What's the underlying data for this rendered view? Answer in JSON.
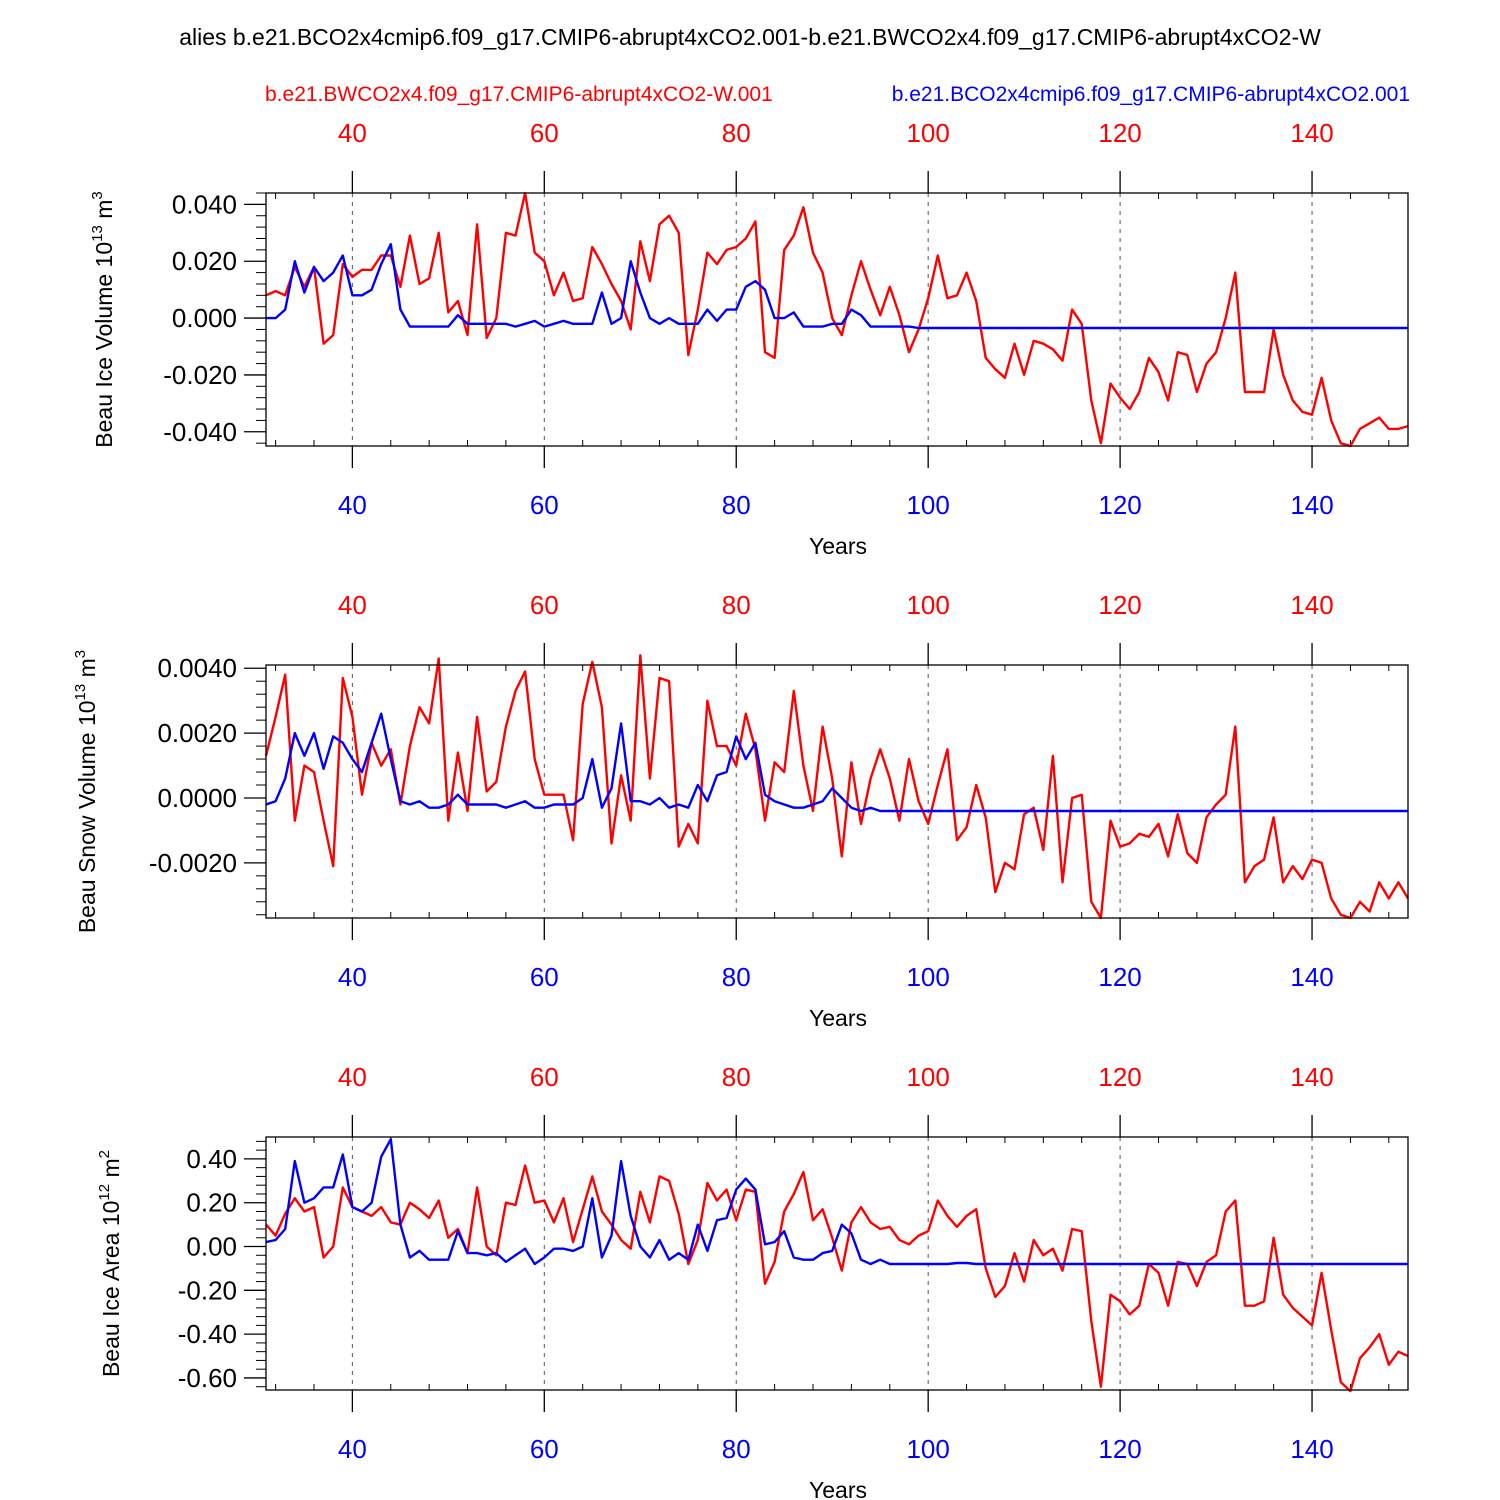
{
  "title": "alies b.e21.BCO2x4cmip6.f09_g17.CMIP6-abrupt4xCO2.001-b.e21.BWCO2x4.f09_g17.CMIP6-abrupt4xCO2-W",
  "colors": {
    "red": "#ff0000",
    "blue": "#0000ff",
    "axis": "#000000",
    "grid": "#555555"
  },
  "chart_data": [
    {
      "type": "line",
      "panel": "ice-volume",
      "ylabel_main": "Beau Ice Volume 10",
      "ylabel_exp": "13",
      "ylabel_unit": " m",
      "ylabel_unit_exp": "3",
      "xlabel": "Years",
      "xlim": [
        31,
        150
      ],
      "ylim": [
        -0.045,
        0.044
      ],
      "yticks": [
        0.04,
        0.02,
        0.0,
        -0.02,
        -0.04
      ],
      "ytick_labels": [
        "0.040",
        "0.020",
        "0.000",
        "-0.020",
        "-0.040"
      ],
      "xticks": [
        40,
        60,
        80,
        100,
        120,
        140
      ],
      "xtick_labels": [
        "40",
        "60",
        "80",
        "100",
        "120",
        "140"
      ],
      "legend_red": "b.e21.BWCO2x4.f09_g17.CMIP6-abrupt4xCO2-W.001",
      "legend_blue": "b.e21.BCO2x4cmip6.f09_g17.CMIP6-abrupt4xCO2.001",
      "series": [
        {
          "name": "b.e21.BWCO2x4.f09_g17.CMIP6-abrupt4xCO2-W.001",
          "color": "red",
          "start_year": 31,
          "values": [
            0.008,
            0.0095,
            0.008,
            0.018,
            0.011,
            0.018,
            -0.009,
            -0.006,
            0.019,
            0.0145,
            0.017,
            0.017,
            0.022,
            0.022,
            0.011,
            0.029,
            0.012,
            0.014,
            0.03,
            0.002,
            0.006,
            -0.006,
            0.033,
            -0.007,
            0.0,
            0.03,
            0.029,
            0.044,
            0.023,
            0.02,
            0.008,
            0.016,
            0.006,
            0.007,
            0.025,
            0.019,
            0.012,
            0.006,
            -0.004,
            0.027,
            0.013,
            0.033,
            0.036,
            0.03,
            -0.013,
            0.003,
            0.023,
            0.019,
            0.024,
            0.025,
            0.028,
            0.034,
            -0.012,
            -0.014,
            0.024,
            0.029,
            0.039,
            0.023,
            0.016,
            0.0,
            -0.006,
            0.008,
            0.02,
            0.01,
            0.001,
            0.011,
            0.001,
            -0.012,
            -0.004,
            0.007,
            0.022,
            0.007,
            0.008,
            0.016,
            0.006,
            -0.014,
            -0.018,
            -0.021,
            -0.009,
            -0.02,
            -0.008,
            -0.009,
            -0.011,
            -0.015,
            0.003,
            -0.002,
            -0.029,
            -0.044,
            -0.023,
            -0.028,
            -0.032,
            -0.026,
            -0.014,
            -0.019,
            -0.029,
            -0.012,
            -0.013,
            -0.026,
            -0.016,
            -0.012,
            0.0,
            0.016,
            -0.026,
            -0.026,
            -0.026,
            -0.004,
            -0.02,
            -0.029,
            -0.033,
            -0.034,
            -0.021,
            -0.036,
            -0.044,
            -0.045,
            -0.039,
            -0.037,
            -0.035,
            -0.039,
            -0.039,
            -0.038
          ]
        },
        {
          "name": "b.e21.BCO2x4cmip6.f09_g17.CMIP6-abrupt4xCO2.001",
          "color": "blue",
          "start_year": 31,
          "values": [
            0.0,
            0.0,
            0.003,
            0.02,
            0.009,
            0.018,
            0.013,
            0.016,
            0.022,
            0.008,
            0.008,
            0.01,
            0.019,
            0.026,
            0.003,
            -0.003,
            -0.003,
            -0.003,
            -0.003,
            -0.003,
            0.001,
            -0.002,
            -0.002,
            -0.002,
            -0.002,
            -0.002,
            -0.003,
            -0.002,
            -0.001,
            -0.003,
            -0.002,
            -0.001,
            -0.002,
            -0.002,
            -0.002,
            0.009,
            -0.002,
            0.0,
            0.02,
            0.009,
            0.0,
            -0.002,
            0.0,
            -0.002,
            -0.002,
            -0.002,
            0.003,
            -0.001,
            0.003,
            0.003,
            0.011,
            0.013,
            0.01,
            0.0,
            0.0,
            0.002,
            -0.003,
            -0.003,
            -0.003,
            -0.002,
            -0.002,
            0.003,
            0.001,
            -0.003,
            -0.003,
            -0.003,
            -0.003,
            -0.003,
            -0.0035,
            -0.0035,
            -0.0035,
            -0.0035,
            -0.0035,
            -0.0035,
            -0.0035,
            -0.0035,
            -0.0035,
            -0.0035,
            -0.0035,
            -0.0035,
            -0.0035,
            -0.0035,
            -0.0035,
            -0.0035,
            -0.0035,
            -0.0035,
            -0.0035,
            -0.0035,
            -0.0035,
            -0.0035,
            -0.0035,
            -0.0035,
            -0.0035,
            -0.0035,
            -0.0035,
            -0.0035,
            -0.0035,
            -0.0035,
            -0.0035,
            -0.0035,
            -0.0035,
            -0.0035,
            -0.0035,
            -0.0035,
            -0.0035,
            -0.0035,
            -0.0035,
            -0.0035,
            -0.0035,
            -0.0035,
            -0.0035,
            -0.0035,
            -0.0035,
            -0.0035,
            -0.0035,
            -0.0035,
            -0.0035,
            -0.0035,
            -0.0035,
            -0.0035
          ]
        }
      ]
    },
    {
      "type": "line",
      "panel": "snow-volume",
      "ylabel_main": "Beau Snow Volume 10",
      "ylabel_exp": "13",
      "ylabel_unit": " m",
      "ylabel_unit_exp": "3",
      "xlabel": "Years",
      "xlim": [
        31,
        150
      ],
      "ylim": [
        -0.0037,
        0.0041
      ],
      "yticks": [
        0.004,
        0.002,
        0.0,
        -0.002
      ],
      "ytick_labels": [
        "0.0040",
        "0.0020",
        "0.0000",
        "-0.0020"
      ],
      "xticks": [
        40,
        60,
        80,
        100,
        120,
        140
      ],
      "xtick_labels": [
        "40",
        "60",
        "80",
        "100",
        "120",
        "140"
      ],
      "series": [
        {
          "name": "b.e21.BWCO2x4.f09_g17.CMIP6-abrupt4xCO2-W.001",
          "color": "red",
          "start_year": 31,
          "values": [
            0.0013,
            0.0025,
            0.0038,
            -0.0007,
            0.001,
            0.0008,
            -0.0007,
            -0.0021,
            0.0037,
            0.0025,
            0.0001,
            0.0017,
            0.001,
            0.0015,
            -0.0002,
            0.0016,
            0.0028,
            0.0023,
            0.0043,
            -0.0007,
            0.0014,
            -0.0004,
            0.0025,
            0.0002,
            0.0005,
            0.0022,
            0.0033,
            0.0039,
            0.0012,
            0.0001,
            0.0001,
            0.0001,
            -0.0013,
            0.0029,
            0.0042,
            0.0028,
            -0.0014,
            0.0007,
            -0.0007,
            0.0044,
            0.0006,
            0.0037,
            0.0036,
            -0.0015,
            -0.0008,
            -0.0014,
            0.003,
            0.0016,
            0.0016,
            0.001,
            0.0026,
            0.0015,
            -0.0007,
            0.0011,
            0.0008,
            0.0033,
            0.001,
            -0.0004,
            0.0022,
            0.0006,
            -0.0018,
            0.0011,
            -0.0008,
            0.0006,
            0.0015,
            0.0006,
            -0.0007,
            0.0012,
            -0.0001,
            -0.0008,
            0.0004,
            0.0015,
            -0.0013,
            -0.0009,
            0.0004,
            -0.0006,
            -0.0029,
            -0.002,
            -0.0022,
            -0.0005,
            -0.0003,
            -0.0016,
            0.0013,
            -0.0026,
            0.0,
            0.0001,
            -0.0032,
            -0.0037,
            -0.0007,
            -0.0015,
            -0.0014,
            -0.0011,
            -0.0012,
            -0.0008,
            -0.0018,
            -0.0005,
            -0.0017,
            -0.002,
            -0.0006,
            -0.0002,
            0.0001,
            0.0022,
            -0.0026,
            -0.0021,
            -0.0019,
            -0.0006,
            -0.0026,
            -0.0021,
            -0.0025,
            -0.0019,
            -0.002,
            -0.0031,
            -0.0036,
            -0.0037,
            -0.0032,
            -0.0035,
            -0.0026,
            -0.0031,
            -0.0026,
            -0.0031
          ]
        },
        {
          "name": "b.e21.BCO2x4cmip6.f09_g17.CMIP6-abrupt4xCO2.001",
          "color": "blue",
          "start_year": 31,
          "values": [
            -0.0002,
            -0.0001,
            0.0006,
            0.002,
            0.0013,
            0.002,
            0.0009,
            0.0019,
            0.0017,
            0.0012,
            0.0008,
            0.0017,
            0.0026,
            0.0012,
            -0.0001,
            -0.0002,
            -0.0001,
            -0.0003,
            -0.0003,
            -0.0002,
            0.0001,
            -0.0002,
            -0.0002,
            -0.0002,
            -0.0002,
            -0.0003,
            -0.0002,
            -0.0001,
            -0.0003,
            -0.0003,
            -0.0002,
            -0.0002,
            -0.0002,
            0.0,
            0.0012,
            -0.0003,
            0.0003,
            0.0023,
            -0.0001,
            -0.0001,
            -0.0002,
            0.0,
            -0.0003,
            -0.0002,
            -0.0003,
            0.0004,
            -0.0001,
            0.0007,
            0.0008,
            0.0019,
            0.0012,
            0.0017,
            0.0001,
            -0.0001,
            -0.0002,
            -0.0003,
            -0.0003,
            -0.0002,
            -0.0001,
            0.0003,
            0.0,
            -0.0003,
            -0.0004,
            -0.0003,
            -0.0004,
            -0.0004,
            -0.0004,
            -0.0004,
            -0.0004,
            -0.0004,
            -0.0004,
            -0.0004,
            -0.0004,
            -0.0004,
            -0.0004,
            -0.0004,
            -0.0004,
            -0.0004,
            -0.0004,
            -0.0004,
            -0.0004,
            -0.0004,
            -0.0004,
            -0.0004,
            -0.0004,
            -0.0004,
            -0.0004,
            -0.0004,
            -0.0004,
            -0.0004,
            -0.0004,
            -0.0004,
            -0.0004,
            -0.0004,
            -0.0004,
            -0.0004,
            -0.0004,
            -0.0004,
            -0.0004,
            -0.0004,
            -0.0004,
            -0.0004,
            -0.0004,
            -0.0004,
            -0.0004,
            -0.0004,
            -0.0004,
            -0.0004,
            -0.0004,
            -0.0004,
            -0.0004,
            -0.0004,
            -0.0004,
            -0.0004,
            -0.0004,
            -0.0004,
            -0.0004,
            -0.0004,
            -0.0004,
            -0.0004
          ]
        }
      ]
    },
    {
      "type": "line",
      "panel": "ice-area",
      "ylabel_main": "Beau Ice Area 10",
      "ylabel_exp": "12",
      "ylabel_unit": " m",
      "ylabel_unit_exp": "2",
      "xlabel": "Years",
      "xlim": [
        31,
        150
      ],
      "ylim": [
        -0.655,
        0.5
      ],
      "yticks": [
        0.4,
        0.2,
        0.0,
        -0.2,
        -0.4,
        -0.6
      ],
      "ytick_labels": [
        "0.40",
        "0.20",
        "0.00",
        "-0.20",
        "-0.40",
        "-0.60"
      ],
      "xticks": [
        40,
        60,
        80,
        100,
        120,
        140
      ],
      "xtick_labels": [
        "40",
        "60",
        "80",
        "100",
        "120",
        "140"
      ],
      "series": [
        {
          "name": "b.e21.BWCO2x4.f09_g17.CMIP6-abrupt4xCO2-W.001",
          "color": "red",
          "start_year": 31,
          "values": [
            0.1,
            0.05,
            0.15,
            0.22,
            0.16,
            0.18,
            -0.05,
            0.0,
            0.27,
            0.18,
            0.16,
            0.14,
            0.18,
            0.11,
            0.1,
            0.2,
            0.17,
            0.13,
            0.21,
            0.04,
            0.08,
            -0.03,
            0.27,
            0.0,
            -0.04,
            0.2,
            0.19,
            0.37,
            0.2,
            0.21,
            0.11,
            0.22,
            0.02,
            0.17,
            0.32,
            0.16,
            0.1,
            0.03,
            -0.01,
            0.25,
            0.11,
            0.32,
            0.3,
            0.15,
            -0.08,
            0.03,
            0.29,
            0.21,
            0.26,
            0.12,
            0.26,
            0.25,
            -0.17,
            -0.07,
            0.16,
            0.24,
            0.34,
            0.12,
            0.17,
            0.04,
            -0.11,
            0.11,
            0.18,
            0.11,
            0.08,
            0.09,
            0.03,
            0.01,
            0.05,
            0.07,
            0.21,
            0.14,
            0.09,
            0.14,
            0.17,
            -0.1,
            -0.23,
            -0.18,
            -0.03,
            -0.16,
            0.03,
            -0.04,
            -0.01,
            -0.11,
            0.08,
            0.07,
            -0.34,
            -0.64,
            -0.22,
            -0.25,
            -0.31,
            -0.27,
            -0.08,
            -0.12,
            -0.27,
            -0.07,
            -0.08,
            -0.18,
            -0.07,
            -0.04,
            0.16,
            0.21,
            -0.27,
            -0.27,
            -0.25,
            0.04,
            -0.22,
            -0.28,
            -0.32,
            -0.36,
            -0.12,
            -0.38,
            -0.62,
            -0.66,
            -0.51,
            -0.46,
            -0.4,
            -0.54,
            -0.48,
            -0.5
          ]
        },
        {
          "name": "b.e21.BCO2x4cmip6.f09_g17.CMIP6-abrupt4xCO2.001",
          "color": "blue",
          "start_year": 31,
          "values": [
            0.02,
            0.03,
            0.08,
            0.39,
            0.2,
            0.22,
            0.27,
            0.27,
            0.42,
            0.18,
            0.16,
            0.2,
            0.41,
            0.49,
            0.1,
            -0.05,
            -0.02,
            -0.06,
            -0.06,
            -0.06,
            0.07,
            -0.03,
            -0.03,
            -0.04,
            -0.03,
            -0.07,
            -0.04,
            -0.01,
            -0.08,
            -0.05,
            -0.01,
            -0.01,
            -0.02,
            0.0,
            0.22,
            -0.05,
            0.05,
            0.39,
            0.14,
            0.0,
            -0.05,
            0.03,
            -0.06,
            -0.03,
            -0.06,
            0.1,
            -0.02,
            0.12,
            0.13,
            0.26,
            0.31,
            0.26,
            0.01,
            0.02,
            0.07,
            -0.05,
            -0.06,
            -0.06,
            -0.03,
            -0.02,
            0.1,
            0.06,
            -0.06,
            -0.08,
            -0.06,
            -0.08,
            -0.08,
            -0.08,
            -0.08,
            -0.08,
            -0.08,
            -0.08,
            -0.075,
            -0.075,
            -0.08,
            -0.08,
            -0.08,
            -0.08,
            -0.08,
            -0.08,
            -0.08,
            -0.08,
            -0.08,
            -0.08,
            -0.08,
            -0.08,
            -0.08,
            -0.08,
            -0.08,
            -0.08,
            -0.08,
            -0.08,
            -0.08,
            -0.08,
            -0.08,
            -0.08,
            -0.08,
            -0.08,
            -0.08,
            -0.08,
            -0.08,
            -0.08,
            -0.08,
            -0.08,
            -0.08,
            -0.08,
            -0.08,
            -0.08,
            -0.08,
            -0.08,
            -0.08,
            -0.08,
            -0.08,
            -0.08,
            -0.08,
            -0.08,
            -0.08,
            -0.08,
            -0.08,
            -0.08
          ]
        }
      ]
    }
  ]
}
